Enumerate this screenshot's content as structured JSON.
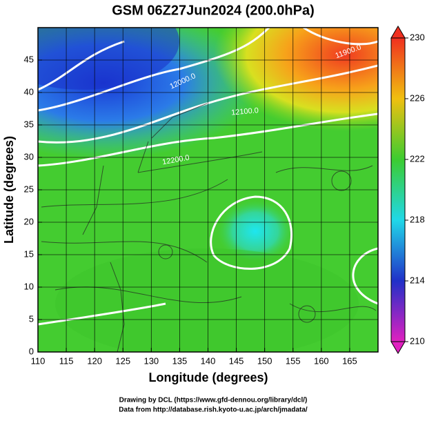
{
  "title": "GSM 06Z27Jun2024 (200.0hPa)",
  "x_axis": {
    "label": "Longitude (degrees)",
    "lim": [
      110,
      170
    ],
    "ticks": [
      110,
      115,
      120,
      125,
      130,
      135,
      140,
      145,
      150,
      155,
      160,
      165
    ]
  },
  "y_axis": {
    "label": "Latitude  (degrees)",
    "lim": [
      0,
      50
    ],
    "ticks": [
      0,
      5,
      10,
      15,
      20,
      25,
      30,
      35,
      40,
      45
    ]
  },
  "colorbar": {
    "range": [
      210,
      230
    ],
    "ticks": [
      210,
      214,
      218,
      222,
      226,
      230
    ]
  },
  "contour_labels": [
    "12000.0",
    "11900.0",
    "12100.0",
    "12200.0"
  ],
  "credits": [
    "Drawing by DCL (https://www.gfd-dennou.org/library/dcl/)",
    "Data from http://database.rish.kyoto-u.ac.jp/arch/jmadata/"
  ]
}
